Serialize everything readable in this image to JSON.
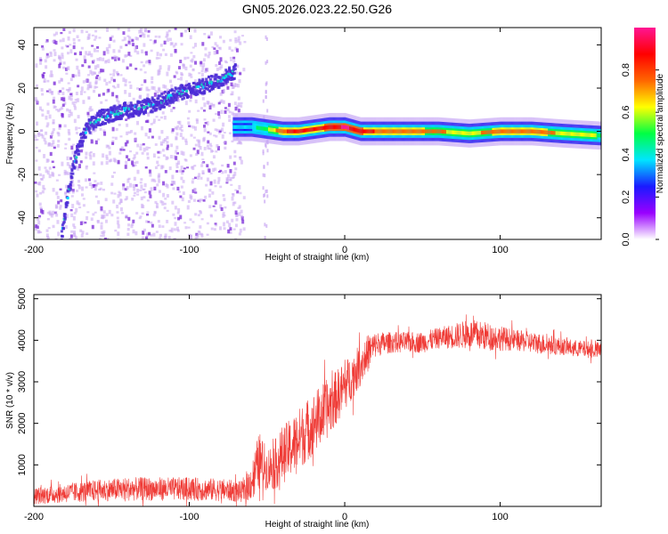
{
  "title": "GN05.2026.023.22.50.G26",
  "colors": {
    "trace": "#ef3b36",
    "low_amp": "#c9a6f2",
    "ridge": "#4b2bd6"
  },
  "chart_data": [
    {
      "type": "heatmap",
      "xlabel": "Height of straight line (km)",
      "ylabel": "Frequency (Hz)",
      "xlim": [
        -200,
        165
      ],
      "ylim": [
        -50,
        48
      ],
      "xticks": [
        -200,
        -100,
        0,
        100
      ],
      "yticks": [
        -40,
        -20,
        0,
        20,
        40
      ],
      "xtick_labels": [
        "-200",
        "-100",
        "0",
        "100"
      ],
      "ytick_labels": [
        "-40",
        "-20",
        "0",
        "20",
        "40"
      ],
      "colorbar": {
        "label": "Normalized spectral amplitude",
        "range": [
          0,
          1
        ],
        "ticks": [
          "0.0",
          "0.2",
          "0.4",
          "0.6",
          "0.8"
        ],
        "tick_values": [
          0,
          0.2,
          0.4,
          0.6,
          0.8
        ],
        "colors": [
          "#ffffff",
          "#9900ff",
          "#1a1aff",
          "#00e5ff",
          "#00ff44",
          "#ffff00",
          "#ff6600",
          "#ff0000",
          "#ff1493"
        ]
      },
      "ridge": {
        "x": [
          -182,
          -178,
          -174,
          -170,
          -165,
          -158,
          -150,
          -140,
          -130,
          -120,
          -110,
          -100,
          -90,
          -80,
          -70
        ],
        "y": [
          -48,
          -30,
          -15,
          -5,
          2,
          6,
          8,
          10,
          11,
          13,
          17,
          19,
          21,
          24,
          28
        ]
      },
      "band": {
        "x": [
          -72,
          -60,
          -50,
          -40,
          -30,
          -20,
          -10,
          0,
          10,
          20,
          40,
          60,
          80,
          100,
          120,
          140,
          165
        ],
        "y": [
          2,
          2,
          1,
          0,
          0,
          1,
          2,
          2,
          0,
          0,
          0,
          0,
          -1,
          0,
          0,
          -1,
          -2
        ],
        "amplitude": [
          0.35,
          0.4,
          0.55,
          0.8,
          0.85,
          0.85,
          0.9,
          0.95,
          0.9,
          0.8,
          0.75,
          0.7,
          0.65,
          0.75,
          0.8,
          0.65,
          0.55
        ]
      }
    },
    {
      "type": "line",
      "xlabel": "Height of straight line (km)",
      "ylabel": "SNR (10 * v/v)",
      "xlim": [
        -200,
        165
      ],
      "ylim": [
        0,
        5100
      ],
      "xticks": [
        -200,
        -100,
        0,
        100
      ],
      "yticks": [
        1000,
        2000,
        3000,
        4000,
        5000
      ],
      "xtick_labels": [
        "-200",
        "-100",
        "0",
        "100"
      ],
      "ytick_labels": [
        "1000",
        "2000",
        "3000",
        "4000",
        "5000"
      ],
      "series": [
        {
          "x": [
            -200,
            -180,
            -160,
            -140,
            -120,
            -100,
            -80,
            -65,
            -60,
            -55,
            -50,
            -45,
            -40,
            -35,
            -30,
            -25,
            -20,
            -15,
            -10,
            -5,
            0,
            5,
            10,
            15,
            20,
            30,
            40,
            50,
            60,
            70,
            80,
            90,
            100,
            110,
            120,
            130,
            140,
            150,
            165
          ],
          "y": [
            250,
            320,
            380,
            420,
            420,
            420,
            400,
            350,
            600,
            1100,
            900,
            1000,
            1250,
            1400,
            1600,
            1800,
            2000,
            2200,
            2400,
            2650,
            2900,
            3150,
            3400,
            3700,
            3900,
            3950,
            3950,
            3950,
            4050,
            4100,
            4150,
            4100,
            4050,
            4000,
            3950,
            3900,
            3850,
            3800,
            3750
          ],
          "noise": [
            200,
            230,
            260,
            280,
            280,
            280,
            270,
            250,
            450,
            700,
            500,
            600,
            700,
            700,
            750,
            750,
            750,
            750,
            700,
            650,
            600,
            550,
            500,
            450,
            300,
            250,
            250,
            250,
            250,
            300,
            350,
            350,
            300,
            250,
            250,
            250,
            200,
            200,
            200
          ]
        }
      ]
    }
  ]
}
